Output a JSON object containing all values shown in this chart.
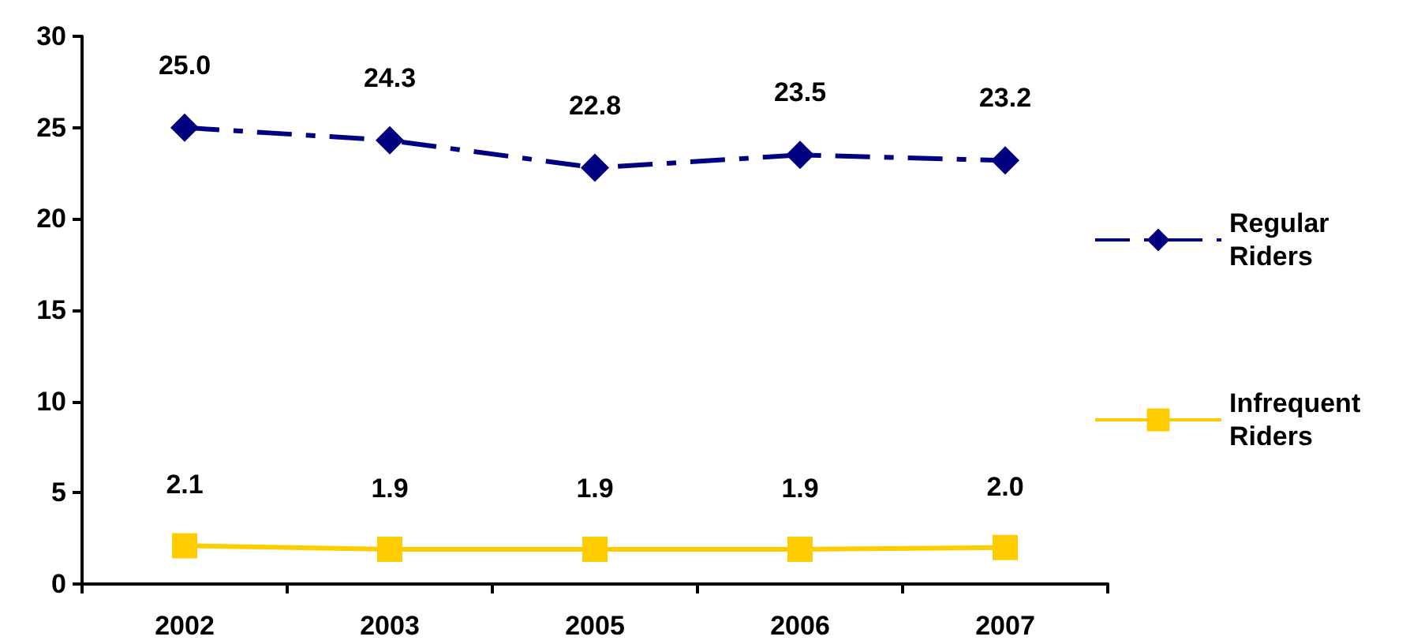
{
  "chart_data": {
    "type": "line",
    "categories": [
      "2002",
      "2003",
      "2005",
      "2006",
      "2007"
    ],
    "series": [
      {
        "name": "Regular Riders",
        "color": "#000080",
        "values": [
          25.0,
          24.3,
          22.8,
          23.5,
          23.2
        ],
        "value_labels": [
          "25.0",
          "24.3",
          "22.8",
          "23.5",
          "23.2"
        ],
        "marker": "diamond",
        "line_style": "dashed"
      },
      {
        "name": "Infrequent Riders",
        "color": "#ffcc00",
        "values": [
          2.1,
          1.9,
          1.9,
          1.9,
          2.0
        ],
        "value_labels": [
          "2.1",
          "1.9",
          "1.9",
          "1.9",
          "2.0"
        ],
        "marker": "square",
        "line_style": "solid"
      }
    ],
    "ylim": [
      0,
      30
    ],
    "yticks": [
      0,
      5,
      10,
      15,
      20,
      25,
      30
    ],
    "grid": false,
    "legend": "right"
  }
}
